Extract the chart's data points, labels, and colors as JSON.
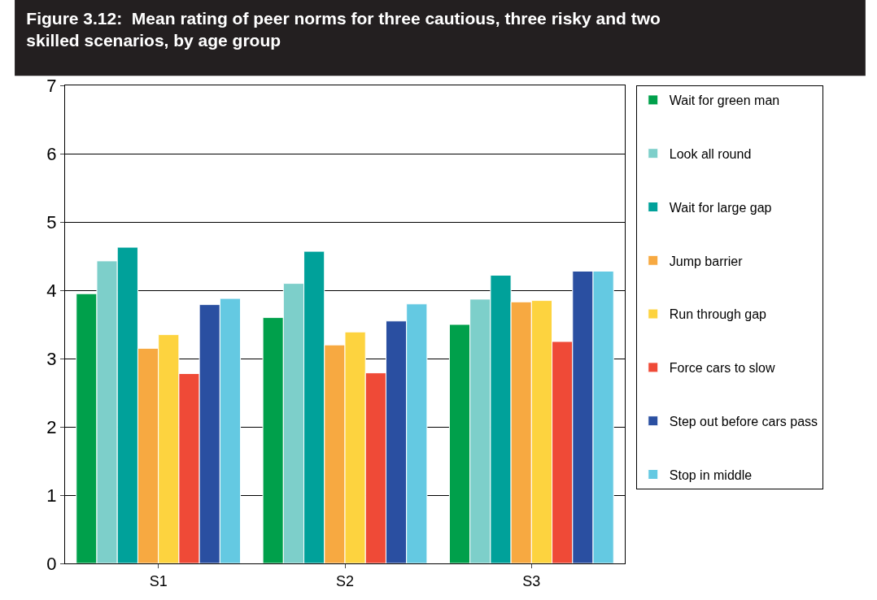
{
  "chart_data": {
    "type": "bar",
    "title": "Figure 3.12:  Mean rating of peer norms for three cautious, three risky and two\nskilled scenarios, by age group",
    "categories": [
      "S1",
      "S2",
      "S3"
    ],
    "series": [
      {
        "name": "Wait for green man",
        "color": "#00a04b",
        "values": [
          3.95,
          3.6,
          3.5
        ]
      },
      {
        "name": "Look all round",
        "color": "#7dcfca",
        "values": [
          4.43,
          4.1,
          3.87
        ]
      },
      {
        "name": "Wait for large gap",
        "color": "#00a19a",
        "values": [
          4.63,
          4.57,
          4.22
        ]
      },
      {
        "name": "Jump barrier",
        "color": "#f7a941",
        "values": [
          3.15,
          3.2,
          3.83
        ]
      },
      {
        "name": "Run through gap",
        "color": "#fdd33f",
        "values": [
          3.35,
          3.39,
          3.85
        ]
      },
      {
        "name": "Force cars to slow",
        "color": "#ef4a37",
        "values": [
          2.78,
          2.79,
          3.25
        ]
      },
      {
        "name": "Step out before cars pass",
        "color": "#2a4fa1",
        "values": [
          3.79,
          3.55,
          4.28
        ]
      },
      {
        "name": "Stop in middle",
        "color": "#64c9e2",
        "values": [
          3.88,
          3.8,
          4.28
        ]
      }
    ],
    "ylim": [
      0,
      7
    ],
    "yticks": [
      0,
      1,
      2,
      3,
      4,
      5,
      6,
      7
    ],
    "grid": "y",
    "legend": "right"
  }
}
